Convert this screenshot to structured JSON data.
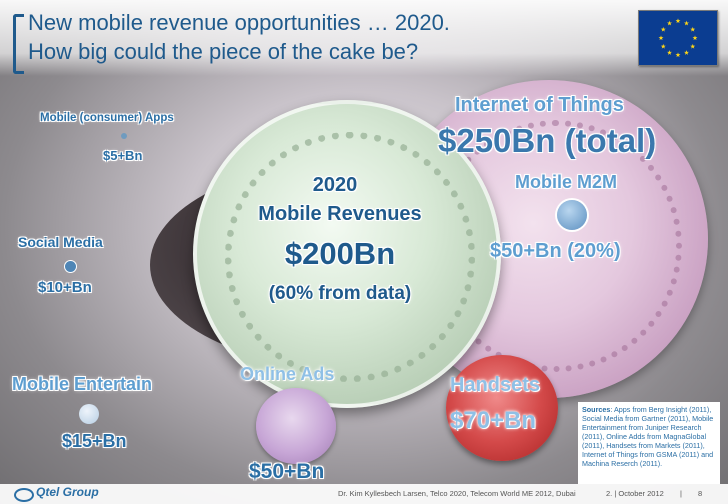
{
  "title": {
    "line1": "New mobile revenue opportunities … 2020.",
    "line2": "How big could the piece of the cake be?"
  },
  "flag": {
    "icon": "eu-flag-icon",
    "colors": {
      "field": "#0b3d91",
      "stars": "#ffd617"
    }
  },
  "segments": {
    "apps": {
      "label": "Mobile (consumer) Apps",
      "value": "$5+Bn"
    },
    "social": {
      "label": "Social Media",
      "value": "$10+Bn"
    },
    "entertain": {
      "label": "Mobile Entertain",
      "value": "$15+Bn"
    },
    "ads": {
      "label": "Online Ads",
      "value": "$50+Bn"
    },
    "handsets": {
      "label": "Handsets",
      "value": "$70+Bn"
    },
    "iot": {
      "label": "Internet of Things",
      "value": "$250Bn (total)"
    },
    "m2m": {
      "label": "Mobile M2M",
      "value": "$50+Bn (20%)"
    }
  },
  "center": {
    "year": "2020",
    "label": "Mobile Revenues",
    "value": "$200Bn",
    "note": "(60% from data)"
  },
  "sources": {
    "heading": "Sources",
    "text": ": Apps from Berg Insight (2011), Social Media from Gartner (2011), Mobile Entertainment from Juniper Research (2011), Online Adds from MagnaGlobal (2011), Handsets from Markets (2011), Internet of Things from GSMA (2011) and Machina Reserch (2011)."
  },
  "footer": {
    "logo": "Qtel Group",
    "presenter": "Dr. Kim Kyllesbech Larsen, Telco 2020, Telecom World ME 2012, Dubai",
    "date": "2. | October 2012",
    "separator": "|",
    "page": "8"
  },
  "colors": {
    "title": "#1f5a8c",
    "label_dark": "#2b6fa5",
    "label_light": "#5e9ed0",
    "cake_mint": "#d8e9d6",
    "cake_pink": "#e4c8de",
    "cake_red": "#d44a4a",
    "cake_lavender": "#c7a6d6"
  }
}
